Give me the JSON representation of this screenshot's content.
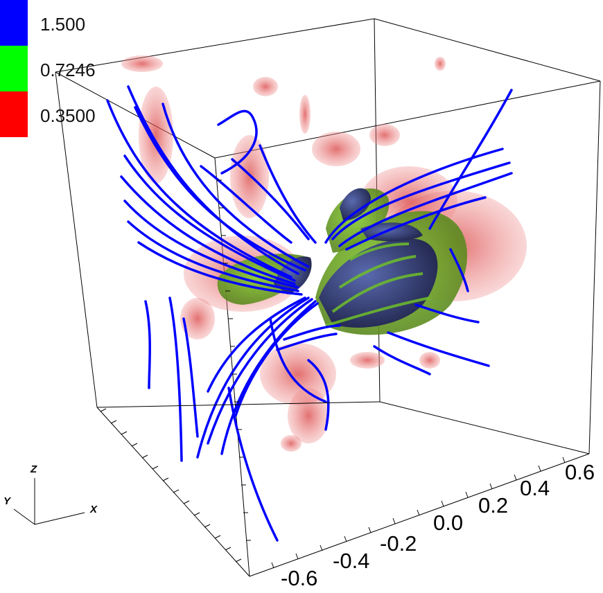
{
  "legend": {
    "items": [
      {
        "label": "1.500",
        "color": "#0000ff"
      },
      {
        "label": "0.7246",
        "color": "#00ff00"
      },
      {
        "label": "0.3500",
        "color": "#ff0000"
      }
    ]
  },
  "axis_ticks": [
    "-0.6",
    "-0.4",
    "-0.2",
    "0.0",
    "0.2",
    "0.4",
    "0.6"
  ],
  "orientation": {
    "z": "Z",
    "y": "Y",
    "x": "X"
  },
  "colors": {
    "field_lines": "#0000ff",
    "isosurface_low": "#e36b6b",
    "isosurface_mid": "#6fbf2a",
    "isosurface_high": "#3a4a9a",
    "box_edges": "#000000"
  }
}
